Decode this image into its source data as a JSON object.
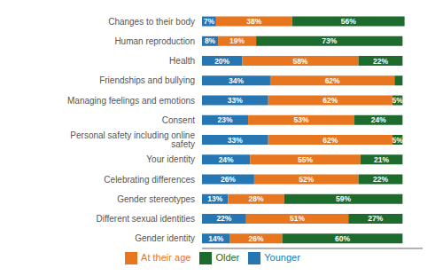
{
  "chart_data": {
    "type": "bar",
    "orientation": "horizontal",
    "stacked": true,
    "categories": [
      "Changes to their body",
      "Human reproduction",
      "Health",
      "Friendships and bullying",
      "Managing feelings and emotions",
      "Consent",
      "Personal safety including online safety",
      "Your identity",
      "Celebrating differences",
      "Gender stereotypes",
      "Different sexual identities",
      "Gender identity"
    ],
    "series": [
      {
        "name": "Younger",
        "color": "#2776B4",
        "values": [
          7,
          8,
          20,
          34,
          33,
          23,
          33,
          24,
          26,
          13,
          22,
          14
        ],
        "value_labels": [
          "7%",
          "8%",
          "20%",
          "34%",
          "33%",
          "23%",
          "33%",
          "24%",
          "26%",
          "13%",
          "22%",
          "14%"
        ]
      },
      {
        "name": "At their age",
        "color": "#E8761E",
        "values": [
          38,
          19,
          58,
          62,
          62,
          53,
          62,
          55,
          52,
          28,
          51,
          26
        ],
        "value_labels": [
          "38%",
          "19%",
          "58%",
          "62%",
          "62%",
          "53%",
          "62%",
          "55%",
          "52%",
          "28%",
          "51%",
          "26%"
        ]
      },
      {
        "name": "Older",
        "color": "#1E6B2E",
        "values": [
          56,
          73,
          22,
          4,
          5,
          24,
          5,
          21,
          22,
          59,
          27,
          60
        ],
        "value_labels": [
          "56%",
          "73%",
          "22%",
          null,
          "5%",
          "24%",
          "5%",
          "21%",
          "22%",
          "59%",
          "27%",
          "60%"
        ]
      }
    ],
    "xlim": [
      0,
      110
    ],
    "tick_labels": "y",
    "legend": "bottom",
    "data_labels": true,
    "grid": false
  }
}
